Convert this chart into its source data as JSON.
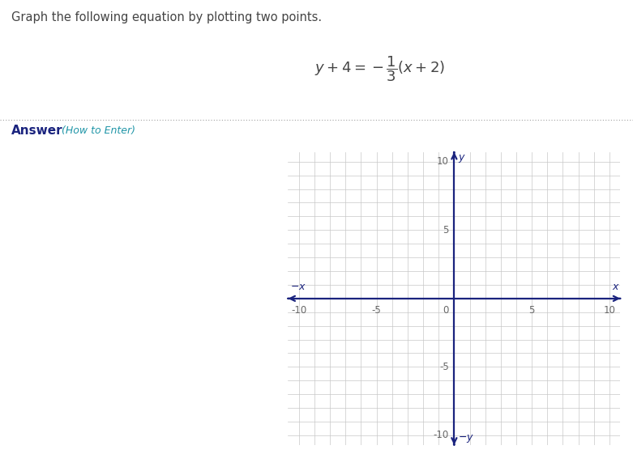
{
  "title_text": "Graph the following equation by plotting two points.",
  "equation_text": "$y + 4 = -\\dfrac{1}{3}(x + 2)$",
  "answer_text": "Answer",
  "how_to_enter_text": " (How to Enter)",
  "page_bg": "#ffffff",
  "answer_bg": "#efefef",
  "grid_color": "#c8c8c8",
  "axis_color": "#1a237e",
  "tick_label_color": "#666666",
  "axis_label_color": "#1a237e",
  "title_color": "#444444",
  "answer_color": "#1a237e",
  "how_to_enter_color": "#2196a8",
  "axis_min": -10,
  "axis_max": 10,
  "fig_width": 7.81,
  "fig_height": 5.61,
  "dpi": 100
}
